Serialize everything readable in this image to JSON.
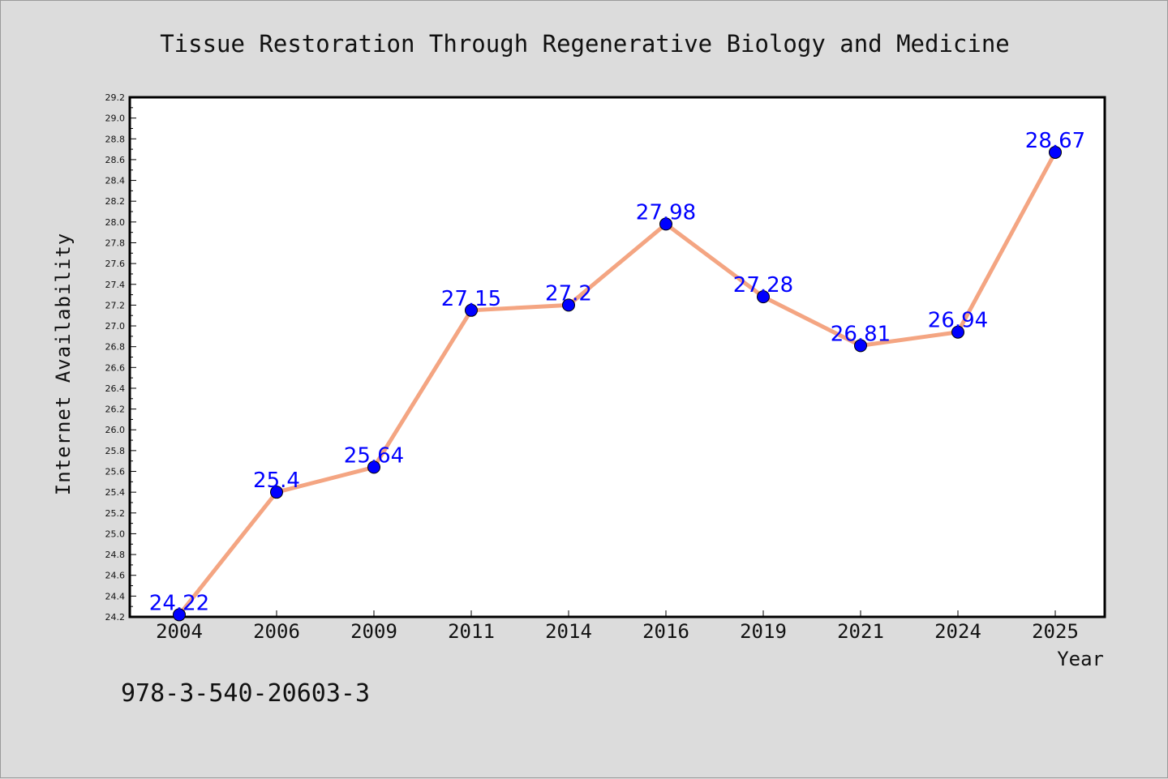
{
  "chart_data": {
    "type": "line",
    "title": "Tissue Restoration Through Regenerative Biology and Medicine",
    "xlabel": "Year",
    "ylabel": "Internet Availability",
    "categories": [
      "2004",
      "2006",
      "2009",
      "2011",
      "2014",
      "2016",
      "2019",
      "2021",
      "2024",
      "2025"
    ],
    "series": [
      {
        "values": [
          24.22,
          25.4,
          25.64,
          27.15,
          27.2,
          27.98,
          27.28,
          26.81,
          26.94,
          28.67
        ],
        "labels": [
          "24.22",
          "25.4",
          "25.64",
          "27.15",
          "27.2",
          "27.98",
          "27.28",
          "26.81",
          "26.94",
          "28.67"
        ]
      }
    ],
    "ylim": [
      24.2,
      29.2
    ],
    "yticks": [
      "24.2",
      "24.4",
      "24.6",
      "24.8",
      "25.0",
      "25.2",
      "25.4",
      "25.6",
      "25.8",
      "26.0",
      "26.2",
      "26.4",
      "26.6",
      "26.8",
      "27.0",
      "27.2",
      "27.4",
      "27.6",
      "27.8",
      "28.0",
      "28.2",
      "28.4",
      "28.6",
      "28.8",
      "29.0",
      "29.2"
    ],
    "grid": false,
    "colors": {
      "line": "#f4a582",
      "marker": "#0000ff",
      "data_label": "#0000ff",
      "background": "#dcdcdc",
      "plot_background": "#ffffff"
    }
  },
  "footer": {
    "isbn": "978-3-540-20603-3"
  }
}
